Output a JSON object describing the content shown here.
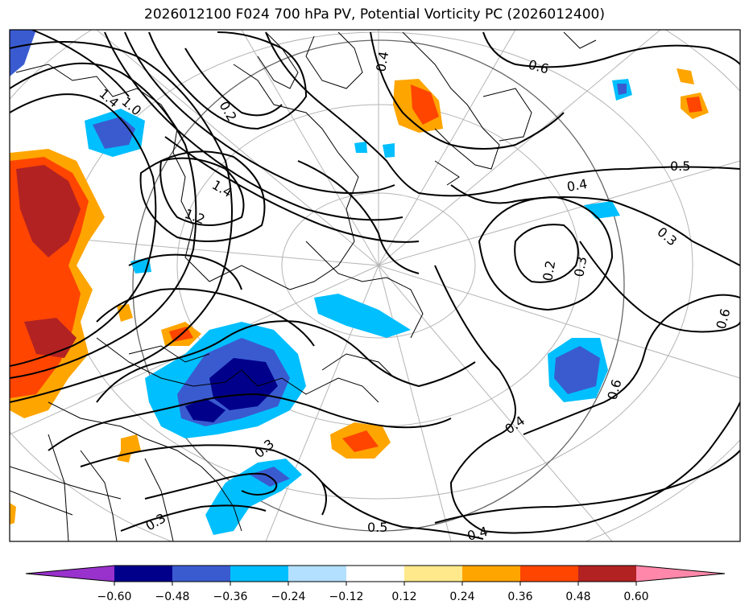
{
  "title": "2026012100 F024 700 hPa PV, Potential Vorticity PC (2026012400)",
  "colorbar": {
    "ticks": [
      "−0.60",
      "−0.48",
      "−0.36",
      "−0.24",
      "−0.12",
      "0.12",
      "0.24",
      "0.36",
      "0.48",
      "0.60"
    ],
    "colors": [
      "#9932cc",
      "#00008b",
      "#3a5bd0",
      "#00bfff",
      "#b3e0ff",
      "#ffffff",
      "#ffe98a",
      "#ffa500",
      "#ff4500",
      "#b22222",
      "#ff88aa"
    ]
  },
  "contour_labels": [
    "1.0",
    "1.4",
    "1.4",
    "1.2",
    "0.4",
    "0.6",
    "0.5",
    "0.4",
    "0.3",
    "0.2",
    "0.3",
    "0.6",
    "0.6",
    "0.4",
    "0.3",
    "0.3",
    "0.5",
    "0.4",
    "0.2"
  ]
}
